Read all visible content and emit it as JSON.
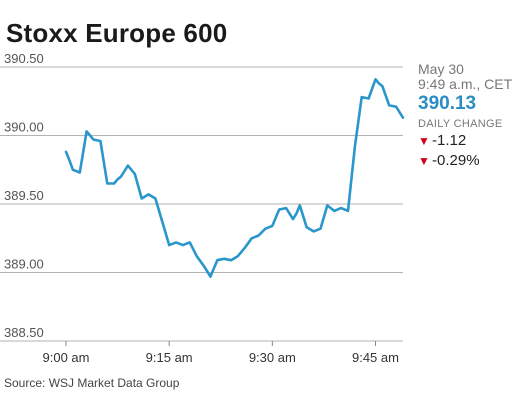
{
  "header": {
    "title": "Stoxx Europe 600"
  },
  "info": {
    "date": "May 30",
    "time": "9:49 a.m., CET",
    "price": "390.13",
    "daily_change_label": "DAILY CHANGE",
    "change_points": "-1.12",
    "change_percent": "-0.29%",
    "down_color": "#d0021b",
    "price_color": "#2a8ec4"
  },
  "footer": {
    "source": "Source: WSJ Market Data Group"
  },
  "chart_data": {
    "type": "line",
    "title": "Stoxx Europe 600",
    "xlabel": "",
    "ylabel": "",
    "x_ticks": [
      {
        "t": 0,
        "label": "9:00 am"
      },
      {
        "t": 15,
        "label": "9:15 am"
      },
      {
        "t": 30,
        "label": "9:30 am"
      },
      {
        "t": 45,
        "label": "9:45 am"
      }
    ],
    "y_ticks": [
      "390.50",
      "390.00",
      "389.50",
      "389.00",
      "388.50"
    ],
    "ylim": [
      388.5,
      390.5
    ],
    "xlim": [
      0,
      49
    ],
    "grid": "horizontal",
    "line_color": "#2a96cc",
    "series": [
      {
        "name": "",
        "x": [
          0,
          0.5,
          1,
          2,
          2.5,
          3,
          3.5,
          4,
          5,
          6,
          7,
          7.5,
          8,
          9,
          10,
          11,
          12,
          13,
          14,
          15,
          16,
          17,
          17.5,
          18,
          19,
          20,
          20.5,
          21,
          22,
          23,
          24,
          25,
          26,
          27,
          28,
          29,
          30,
          31,
          32,
          33,
          33.5,
          34,
          35,
          36,
          37,
          38,
          39,
          40,
          41,
          42,
          43,
          44,
          45,
          45.5,
          46,
          47,
          48,
          49
        ],
        "y": [
          389.88,
          389.82,
          389.75,
          389.73,
          389.88,
          390.03,
          390.0,
          389.97,
          389.96,
          389.65,
          389.65,
          389.68,
          389.7,
          389.78,
          389.72,
          389.54,
          389.57,
          389.54,
          389.37,
          389.2,
          389.22,
          389.2,
          389.21,
          389.22,
          389.12,
          389.05,
          389.01,
          388.97,
          389.09,
          389.1,
          389.09,
          389.12,
          389.18,
          389.25,
          389.27,
          389.32,
          389.34,
          389.46,
          389.47,
          389.39,
          389.43,
          389.49,
          389.33,
          389.3,
          389.32,
          389.49,
          389.45,
          389.47,
          389.45,
          389.92,
          390.28,
          390.27,
          390.41,
          390.38,
          390.36,
          390.22,
          390.21,
          390.13
        ]
      }
    ]
  }
}
